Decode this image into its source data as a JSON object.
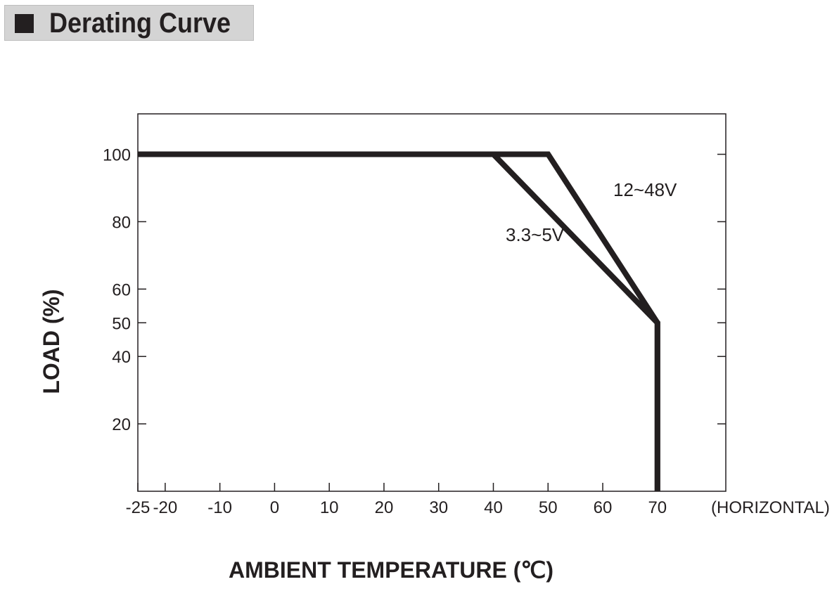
{
  "header": {
    "title": "Derating Curve"
  },
  "chart_data": {
    "type": "line",
    "title": "Derating Curve",
    "xlabel": "AMBIENT TEMPERATURE (℃)",
    "ylabel": "LOAD (%)",
    "x_note": "(HORIZONTAL)",
    "xlim": [
      -25,
      82.5
    ],
    "ylim": [
      0,
      112
    ],
    "x_ticks": [
      -25,
      -20,
      -10,
      0,
      10,
      20,
      30,
      40,
      50,
      60,
      70
    ],
    "x_tick_labels": [
      "-25",
      "-20",
      "-10",
      "0",
      "10",
      "20",
      "30",
      "40",
      "50",
      "60",
      "70"
    ],
    "y_ticks": [
      20,
      40,
      50,
      60,
      80,
      100
    ],
    "y_tick_labels": [
      "20",
      "40",
      "50",
      "60",
      "80",
      "100"
    ],
    "grid": false,
    "line_color": "#231f20",
    "series": [
      {
        "name": "12~48V",
        "x": [
          -25,
          50,
          70,
          70
        ],
        "y": [
          100,
          100,
          50,
          0
        ]
      },
      {
        "name": "3.3~5V",
        "x": [
          -25,
          40,
          70,
          70
        ],
        "y": [
          100,
          100,
          50,
          0
        ]
      }
    ]
  }
}
